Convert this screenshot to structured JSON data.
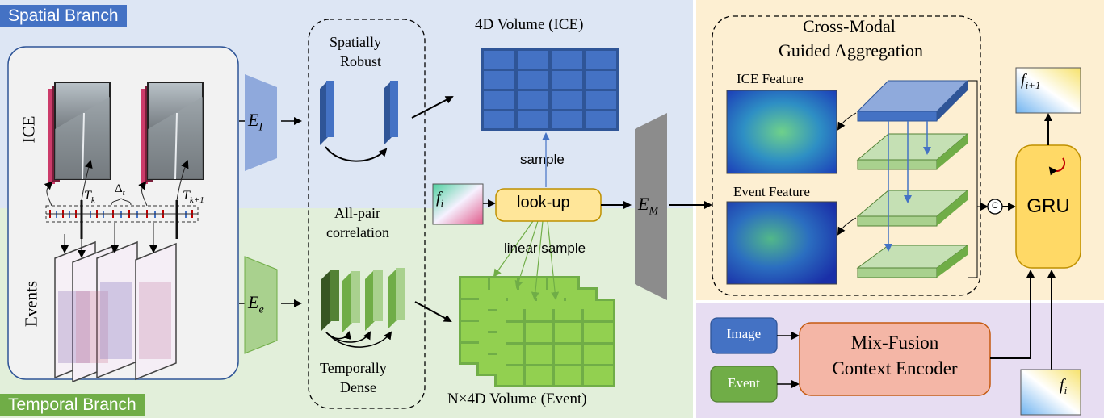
{
  "branches": {
    "spatial": "Spatial Branch",
    "temporal": "Temporal Branch"
  },
  "inputs": {
    "ice_label": "ICE",
    "events_label": "Events",
    "t_k": "T",
    "t_k_sub": "k",
    "t_k1": "T",
    "t_k1_sub": "k+1",
    "delta": "Δ",
    "delta_sub": "t"
  },
  "encoders": {
    "ei": "E",
    "ei_sub": "I",
    "ee": "E",
    "ee_sub": "e",
    "em": "E",
    "em_sub": "M"
  },
  "features": {
    "spatially_robust_1": "Spatially",
    "spatially_robust_2": "Robust",
    "all_pair_1": "All-pair",
    "all_pair_2": "correlation",
    "temporally_dense_1": "Temporally",
    "temporally_dense_2": "Dense"
  },
  "volumes": {
    "ice_volume": "4D Volume (ICE)",
    "event_volume": "N×4D Volume (Event)",
    "sample": "sample",
    "linear_sample": "linear sample",
    "lookup": "look-up"
  },
  "flow": {
    "fi": "f",
    "fi_sub": "i",
    "fi1": "f",
    "fi1_sub": "i+1"
  },
  "aggregation": {
    "title_1": "Cross-Modal",
    "title_2": "Guided Aggregation",
    "ice_feature": "ICE Feature",
    "event_feature": "Event Feature",
    "concat": "C",
    "gru": "GRU"
  },
  "context": {
    "image": "Image",
    "event": "Event",
    "encoder_1": "Mix-Fusion",
    "encoder_2": "Context Encoder"
  },
  "colors": {
    "spatial_bg": "#dde6f4",
    "temporal_bg": "#e2efda",
    "aggregation_bg": "#fdefd2",
    "context_bg": "#e7ddf2",
    "blue_block": "#4472c4",
    "green_block": "#8fc35a",
    "gru_fill": "#ffd966",
    "lookup_fill": "#ffe699",
    "encoder_fill": "#f4b6a6"
  }
}
